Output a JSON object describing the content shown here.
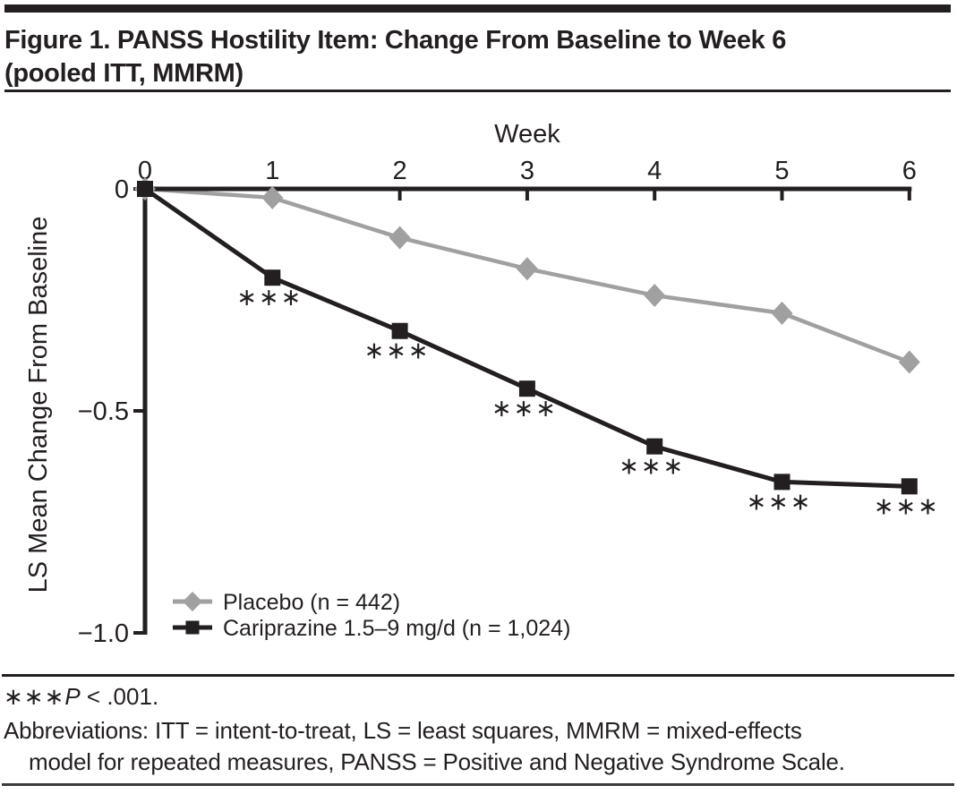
{
  "figure": {
    "title_line1": "Figure 1. PANSS Hostility Item: Change From Baseline to Week 6",
    "title_line2": "(pooled ITT, MMRM)"
  },
  "chart_data": {
    "type": "line",
    "title": "Figure 1. PANSS Hostility Item: Change From Baseline to Week 6 (pooled ITT, MMRM)",
    "xlabel": "Week",
    "ylabel": "LS Mean Change From Baseline",
    "x": [
      0,
      1,
      2,
      3,
      4,
      5,
      6
    ],
    "xtick_labels": [
      "0",
      "1",
      "2",
      "3",
      "4",
      "5",
      "6"
    ],
    "yticks": [
      0,
      -0.5,
      -1.0
    ],
    "ytick_labels": [
      "0",
      "−0.5",
      "−1.0"
    ],
    "ylim": [
      -1.0,
      0
    ],
    "grid": false,
    "legend_position": "inside-bottom-left",
    "series": [
      {
        "name": "Placebo (n = 442)",
        "color": "#a1a0a0",
        "marker": "diamond",
        "values": [
          0,
          -0.02,
          -0.11,
          -0.18,
          -0.24,
          -0.28,
          -0.39
        ]
      },
      {
        "name": "Cariprazine 1.5–9 mg/d (n = 1,024)",
        "color": "#231f20",
        "marker": "square",
        "values": [
          0,
          -0.2,
          -0.32,
          -0.45,
          -0.58,
          -0.66,
          -0.67
        ],
        "significance": [
          "",
          "∗∗∗",
          "∗∗∗",
          "∗∗∗",
          "∗∗∗",
          "∗∗∗",
          "∗∗∗"
        ]
      }
    ]
  },
  "footnotes": {
    "significance": {
      "stars": "∗∗∗",
      "p_symbol": "P",
      "rest": " < .001."
    },
    "abbreviations_line1": "Abbreviations: ITT = intent-to-treat, LS = least squares, MMRM = mixed-effects",
    "abbreviations_line2": "model for repeated measures, PANSS = Positive and Negative Syndrome Scale."
  },
  "colors": {
    "ink": "#231f20",
    "placebo_gray": "#a1a0a0",
    "background": "#ffffff",
    "bottom_rule": "#3b3b3c"
  }
}
